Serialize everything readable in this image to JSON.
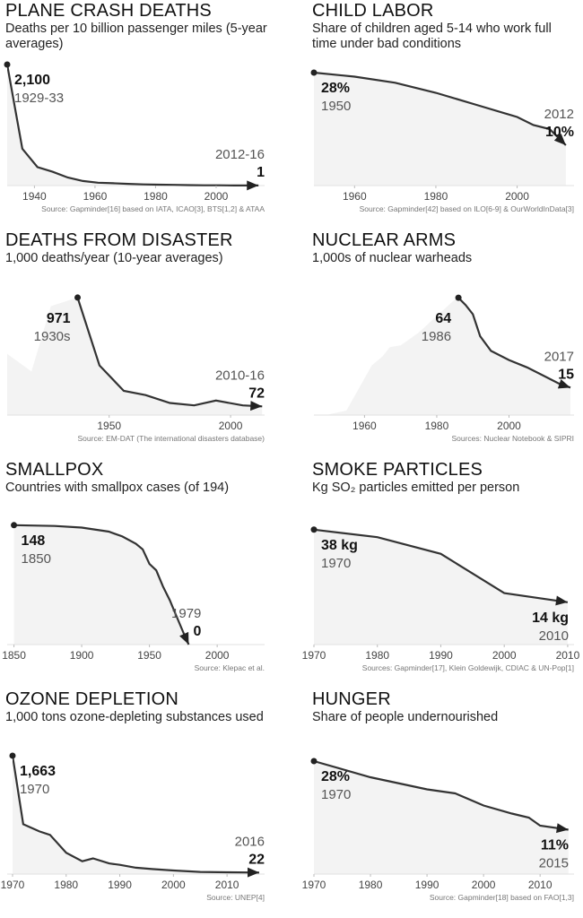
{
  "chart_data": [
    {
      "type": "line",
      "title": "PLANE CRASH DEATHS",
      "subtitle": "Deaths per 10 billion passenger miles (5-year averages)",
      "source": "Source: Gapminder[16] based on IATA, ICAO[3], BTS[1,2] & ATAA",
      "x": [
        1931,
        1936,
        1941,
        1946,
        1951,
        1956,
        1961,
        1966,
        1971,
        1976,
        1981,
        1986,
        1991,
        1996,
        2001,
        2006,
        2011,
        2014
      ],
      "values": [
        2100,
        640,
        320,
        240,
        140,
        80,
        50,
        40,
        30,
        20,
        15,
        12,
        8,
        5,
        4,
        2,
        1.5,
        1
      ],
      "xlim": [
        1931,
        2016
      ],
      "xticks": [
        1940,
        1960,
        1980,
        2000
      ],
      "ylim": [
        0,
        2100
      ],
      "annotations": [
        {
          "x": 1931,
          "value": 2100,
          "label": "2,100",
          "period": "1929-33"
        },
        {
          "x": 2014,
          "value": 1,
          "label": "1",
          "period": "2012-16"
        }
      ]
    },
    {
      "type": "line",
      "title": "CHILD LABOR",
      "subtitle": "Share of children aged 5-14 who work full time under bad conditions",
      "source": "Source: Gapminder[42] based on ILO[6-9] & OurWorldInData[3]",
      "x": [
        1950,
        1960,
        1970,
        1980,
        1990,
        2000,
        2004,
        2008,
        2012
      ],
      "values": [
        28,
        27,
        25.5,
        23,
        20,
        17,
        15,
        14,
        10
      ],
      "xlim": [
        1950,
        2014
      ],
      "xticks": [
        1960,
        1980,
        2000
      ],
      "ylim": [
        0,
        30
      ],
      "annotations": [
        {
          "x": 1950,
          "value": 28,
          "label": "28%",
          "period": "1950"
        },
        {
          "x": 2012,
          "value": 10,
          "label": "10%",
          "period": "2012"
        }
      ]
    },
    {
      "type": "line",
      "title": "DEATHS FROM DISASTER",
      "subtitle": "1,000 deaths/year (10-year averages)",
      "source": "Source: EM-DAT (The international disasters database)",
      "x": [
        1908,
        1918,
        1926,
        1937,
        1946,
        1956,
        1965,
        1975,
        1985,
        1994,
        2005,
        2013
      ],
      "values": [
        505,
        360,
        900,
        971,
        410,
        200,
        165,
        100,
        80,
        120,
        80,
        72
      ],
      "xlim": [
        1908,
        2014
      ],
      "xticks": [
        1950,
        2000
      ],
      "ylim": [
        0,
        1000
      ],
      "annotations": [
        {
          "x": 1937,
          "value": 971,
          "label": "971",
          "period": "1930s"
        },
        {
          "x": 2013,
          "value": 72,
          "label": "72",
          "period": "2010-16"
        }
      ]
    },
    {
      "type": "line",
      "title": "NUCLEAR ARMS",
      "subtitle": "1,000s of nuclear warheads",
      "source": "Sources: Nuclear Notebook & SIPRI",
      "x": [
        1946,
        1950,
        1955,
        1960,
        1962,
        1965,
        1967,
        1970,
        1975,
        1980,
        1985,
        1986,
        1988,
        1990,
        1992,
        1995,
        2000,
        2005,
        2010,
        2014,
        2017
      ],
      "values": [
        0,
        0.3,
        2.5,
        20,
        27,
        32,
        37,
        38,
        45,
        54,
        63,
        64,
        60,
        55,
        43,
        35,
        30,
        26,
        21,
        17,
        15
      ],
      "xlim": [
        1946,
        2018
      ],
      "xticks": [
        1960,
        1980,
        2000
      ],
      "ylim": [
        0,
        66
      ],
      "annotations": [
        {
          "x": 1986,
          "value": 64,
          "label": "64",
          "period": "1986"
        },
        {
          "x": 2017,
          "value": 15,
          "label": "15",
          "period": "2017"
        }
      ]
    },
    {
      "type": "line",
      "title": "SMALLPOX",
      "subtitle": "Countries with smallpox cases (of 194)",
      "source": "Source: Klepac et al.",
      "x": [
        1850,
        1880,
        1900,
        1920,
        1930,
        1940,
        1945,
        1950,
        1955,
        1960,
        1965,
        1970,
        1975,
        1979
      ],
      "values": [
        148,
        147,
        145,
        140,
        134,
        125,
        118,
        100,
        92,
        72,
        55,
        35,
        15,
        0
      ],
      "xlim": [
        1845,
        2035
      ],
      "xticks": [
        1850,
        1900,
        1950,
        2000
      ],
      "ylim": [
        0,
        150
      ],
      "annotations": [
        {
          "x": 1850,
          "value": 148,
          "label": "148",
          "period": "1850"
        },
        {
          "x": 1979,
          "value": 0,
          "label": "0",
          "period": "1979"
        }
      ]
    },
    {
      "type": "line",
      "title": "SMOKE PARTICLES",
      "subtitle": "Kg SO₂ particles emitted per person",
      "source": "Sources: Gapminder[17], Klein Goldewijk, CDIAC & UN-Pop[1]",
      "x": [
        1970,
        1980,
        1990,
        2000,
        2010
      ],
      "values": [
        38,
        35.5,
        30,
        17,
        14
      ],
      "xlim": [
        1970,
        2011
      ],
      "xticks": [
        1970,
        1980,
        1990,
        2000,
        2010
      ],
      "ylim": [
        0,
        40
      ],
      "annotations": [
        {
          "x": 1970,
          "value": 38,
          "label": "38 kg",
          "period": "1970"
        },
        {
          "x": 2010,
          "value": 14,
          "label": "14 kg",
          "period": "2010"
        }
      ]
    },
    {
      "type": "line",
      "title": "OZONE DEPLETION",
      "subtitle": "1,000 tons ozone-depleting substances used",
      "source": "Source: UNEP[4]",
      "x": [
        1970,
        1972,
        1975,
        1977,
        1980,
        1983,
        1985,
        1988,
        1990,
        1993,
        1996,
        2000,
        2005,
        2010,
        2016
      ],
      "values": [
        1663,
        700,
        600,
        550,
        300,
        180,
        220,
        150,
        130,
        90,
        70,
        50,
        30,
        25,
        22
      ],
      "xlim": [
        1969,
        2017
      ],
      "xticks": [
        1970,
        1980,
        1990,
        2000,
        2010
      ],
      "ylim": [
        0,
        1700
      ],
      "annotations": [
        {
          "x": 1970,
          "value": 1663,
          "label": "1,663",
          "period": "1970"
        },
        {
          "x": 2016,
          "value": 22,
          "label": "22",
          "period": "2016"
        }
      ]
    },
    {
      "type": "line",
      "title": "HUNGER",
      "subtitle": "Share of people undernourished",
      "source": "Source: Gapminder[18] based on FAO[1,3]",
      "x": [
        1970,
        1980,
        1990,
        1995,
        2000,
        2005,
        2008,
        2010,
        2015
      ],
      "values": [
        28,
        24,
        21,
        20,
        17,
        15,
        14,
        12,
        11
      ],
      "xlim": [
        1970,
        2016
      ],
      "xticks": [
        1970,
        1980,
        1990,
        2000,
        2010
      ],
      "ylim": [
        0,
        30
      ],
      "annotations": [
        {
          "x": 1970,
          "value": 28,
          "label": "28%",
          "period": "1970"
        },
        {
          "x": 2015,
          "value": 11,
          "label": "11%",
          "period": "2015"
        }
      ]
    }
  ]
}
